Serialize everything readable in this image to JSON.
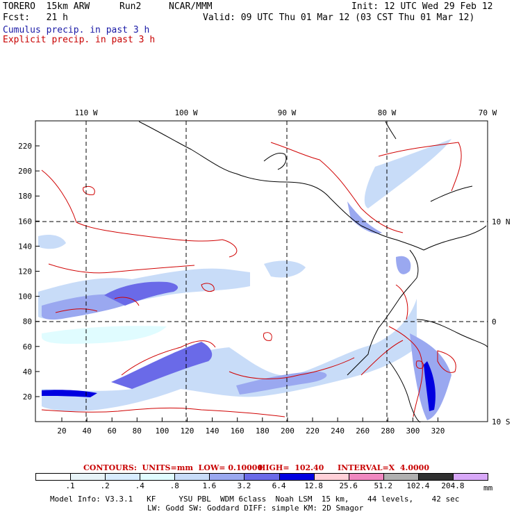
{
  "header": {
    "model": "TORERO  15km ARW",
    "run": "Run2",
    "org": "NCAR/MMM",
    "init": "Init: 12 UTC Wed 29 Feb 12",
    "fcst": "Fcst:   21 h",
    "valid": "Valid: 09 UTC Thu 01 Mar 12 (03 CST Thu 01 Mar 12)",
    "cumulus": "Cumulus precip. in past 3 h",
    "explicit": "Explicit precip. in past 3 h"
  },
  "map": {
    "lon_labels": [
      "110 W",
      "100 W",
      "90 W",
      "80 W",
      "70 W"
    ],
    "lat_labels": [
      "10 N",
      "0",
      "10 S"
    ],
    "x_ticks": [
      "20",
      "40",
      "60",
      "80",
      "100",
      "120",
      "140",
      "160",
      "180",
      "200",
      "220",
      "240",
      "260",
      "280",
      "300",
      "320"
    ],
    "y_ticks": [
      "20",
      "40",
      "60",
      "80",
      "100",
      "120",
      "140",
      "160",
      "180",
      "200",
      "220"
    ]
  },
  "contours_line": {
    "label": "CONTOURS:  UNITS=mm  LOW= 0.10000",
    "high": "HIGH=  102.40",
    "interval": "INTERVAL=X  4.0000"
  },
  "legend": {
    "labels": [
      ".1",
      ".2",
      ".4",
      ".8",
      "1.6",
      "3.2",
      "6.4",
      "12.8",
      "25.6",
      "51.2",
      "102.4",
      "204.8"
    ],
    "unit": "mm",
    "colors": [
      "#ffffff",
      "#e8f4f8",
      "#d8ecff",
      "#e0fcff",
      "#c8dcf8",
      "#9aa8f0",
      "#6a6ae8",
      "#0000e0",
      "#ffd0d8",
      "#f088c0",
      "#b0b0b0",
      "#303030",
      "#d8a8f8"
    ]
  },
  "footer": {
    "line1": "Model Info: V3.3.1   KF     YSU PBL  WDM 6class  Noah LSM  15 km,    44 levels,    42 sec",
    "line2": "LW: Godd SW: Goddard DIFF: simple KM: 2D Smagor"
  }
}
